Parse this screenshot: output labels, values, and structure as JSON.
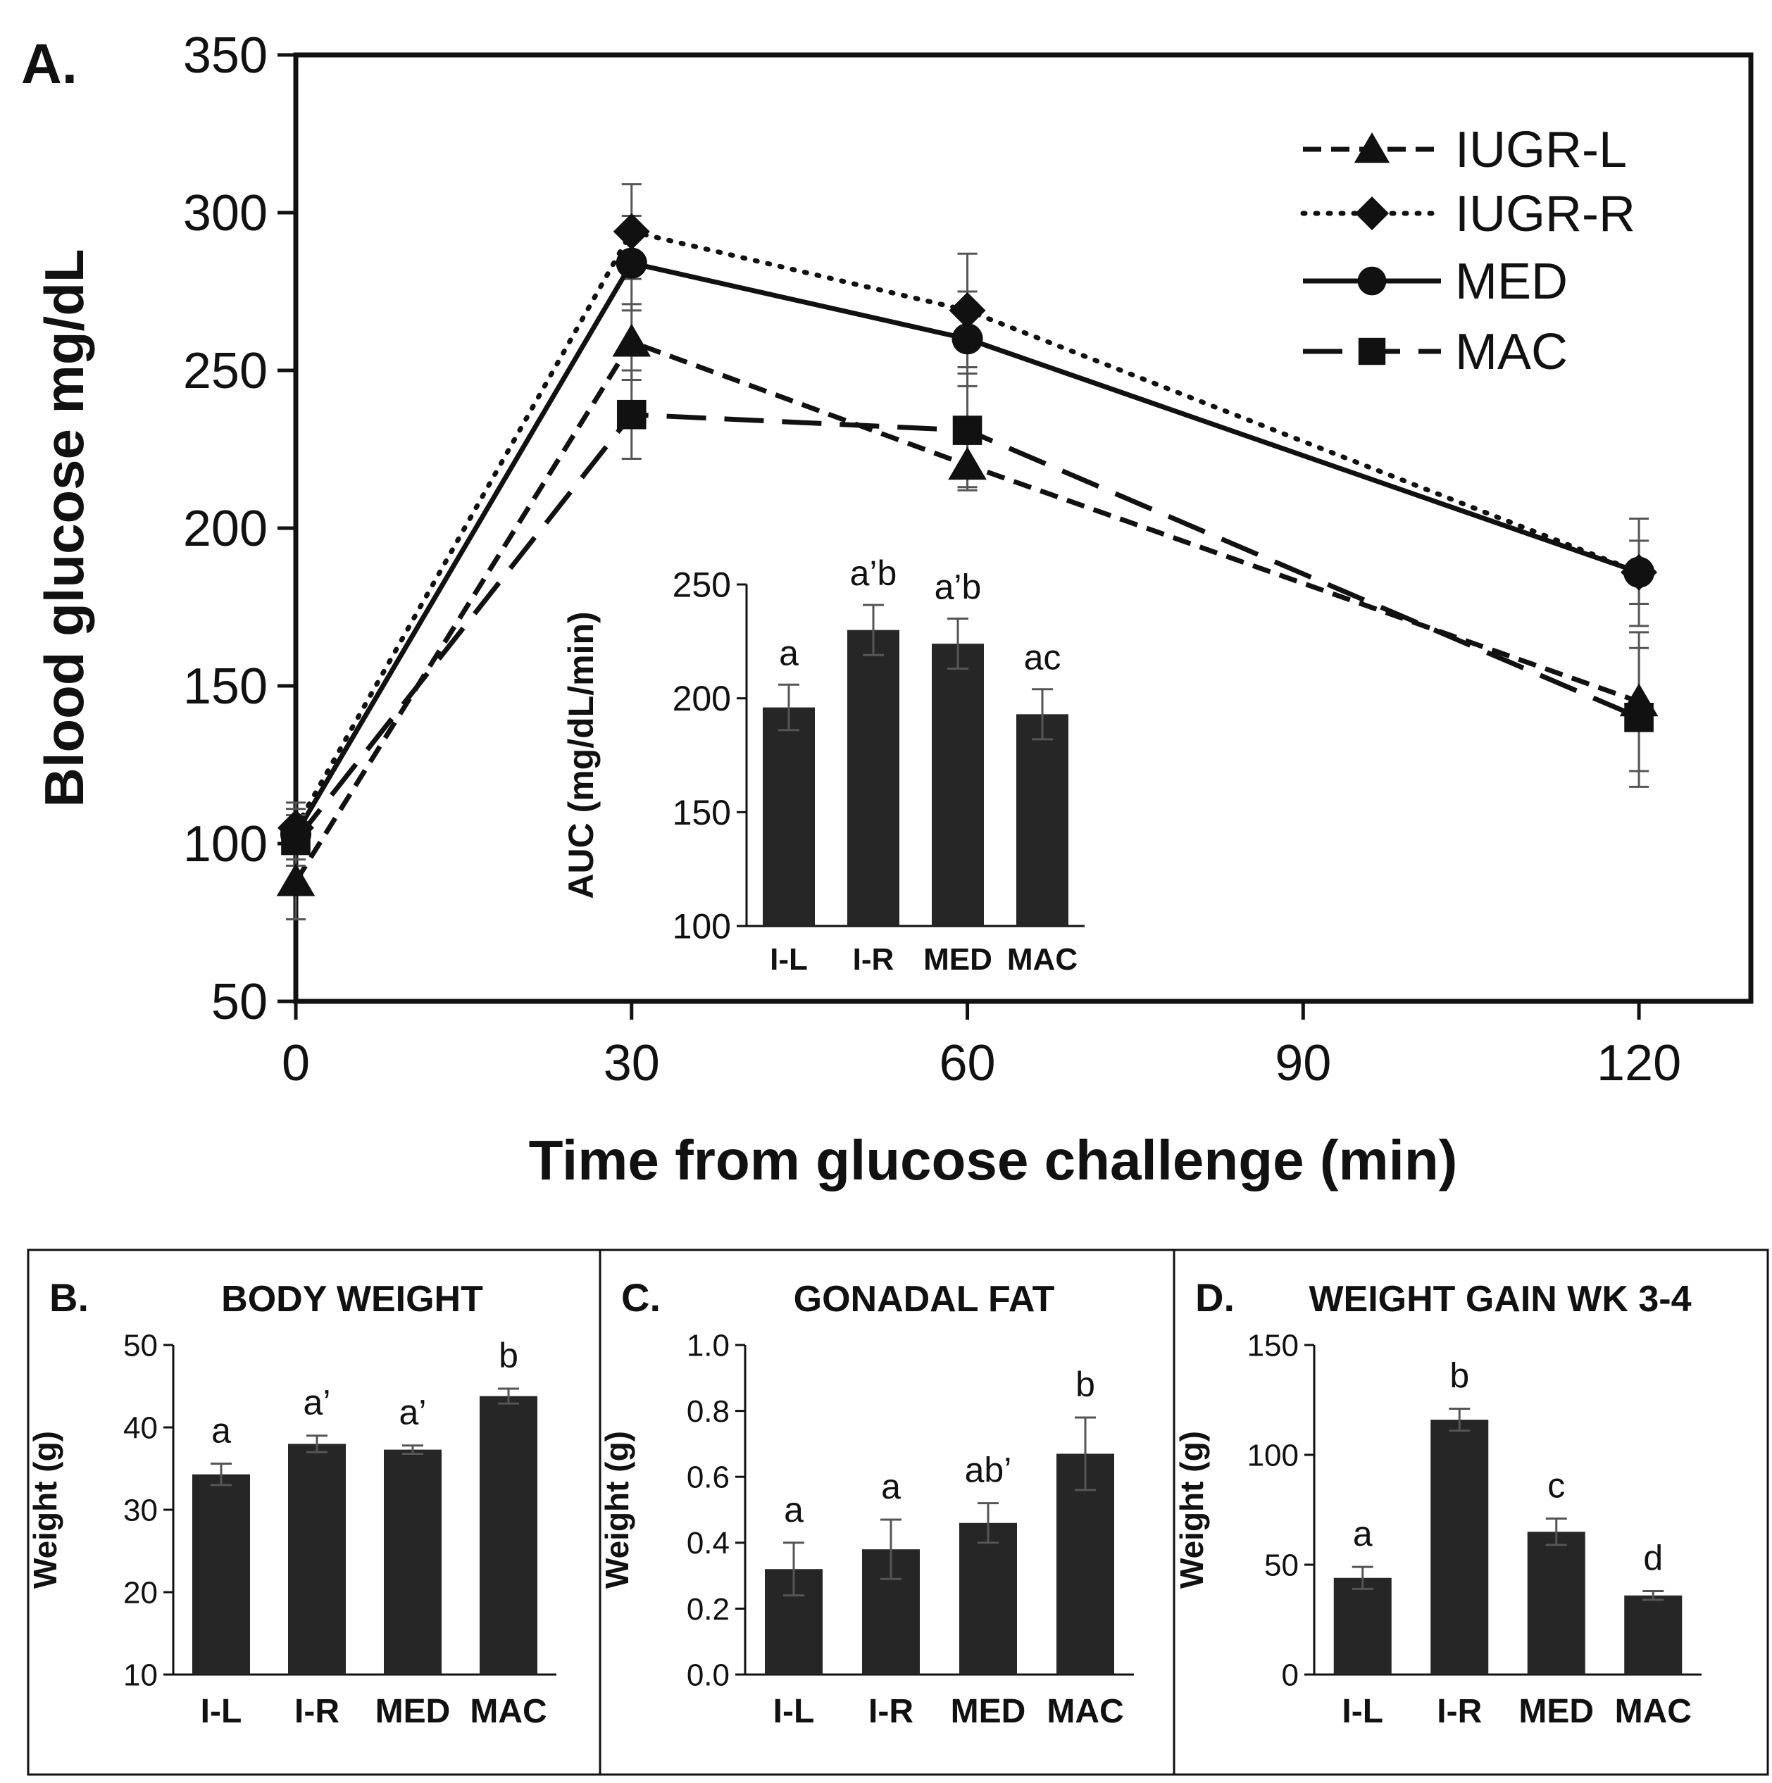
{
  "colors": {
    "ink": "#111111",
    "bar": "#262626",
    "background": "#ffffff",
    "errorbar": "#555555"
  },
  "chart_data": [
    {
      "id": "A",
      "type": "line",
      "panel_label": "A.",
      "xlabel": "Time from glucose challenge (min)",
      "ylabel": "Blood glucose mg/dL",
      "x_ticks": [
        "0",
        "30",
        "60",
        "90",
        "120"
      ],
      "y_ticks": [
        "50",
        "100",
        "150",
        "200",
        "250",
        "300",
        "350"
      ],
      "xlim": [
        0,
        130
      ],
      "ylim": [
        50,
        350
      ],
      "x": [
        0,
        30,
        60,
        120
      ],
      "series": [
        {
          "name": "IUGR-L",
          "marker": "triangle",
          "dash": "short-dash",
          "values": [
            88,
            259,
            220,
            145
          ],
          "errors": [
            12,
            12,
            8,
            22
          ]
        },
        {
          "name": "IUGR-R",
          "marker": "diamond",
          "dash": "dotted",
          "values": [
            105,
            294,
            269,
            186
          ],
          "errors": [
            8,
            15,
            18,
            17
          ]
        },
        {
          "name": "MED",
          "marker": "circle",
          "dash": "solid",
          "values": [
            103,
            284,
            260,
            186
          ],
          "errors": [
            8,
            15,
            15,
            10
          ]
        },
        {
          "name": "MAC",
          "marker": "square",
          "dash": "long-dash",
          "values": [
            101,
            236,
            231,
            140
          ],
          "errors": [
            8,
            14,
            18,
            22
          ]
        }
      ],
      "inset": {
        "type": "bar",
        "ylabel": "AUC (mg/dL/min)",
        "categories": [
          "I-L",
          "I-R",
          "MED",
          "MAC"
        ],
        "values": [
          196,
          230,
          224,
          193
        ],
        "errors": [
          10,
          11,
          11,
          11
        ],
        "annotations": [
          "a",
          "a’b",
          "a’b",
          "ac"
        ],
        "ylim": [
          100,
          250
        ],
        "y_ticks": [
          "100",
          "150",
          "200",
          "250"
        ]
      }
    },
    {
      "id": "B",
      "type": "bar",
      "panel_label": "B.",
      "title": "BODY WEIGHT",
      "ylabel": "Weight (g)",
      "categories": [
        "I-L",
        "I-R",
        "MED",
        "MAC"
      ],
      "values": [
        34.3,
        38.0,
        37.3,
        43.8
      ],
      "errors": [
        1.3,
        1.0,
        0.5,
        0.9
      ],
      "annotations": [
        "a",
        "a’",
        "a’",
        "b"
      ],
      "ylim": [
        10,
        50
      ],
      "y_ticks": [
        "10",
        "20",
        "30",
        "40",
        "50"
      ]
    },
    {
      "id": "C",
      "type": "bar",
      "panel_label": "C.",
      "title": "GONADAL FAT",
      "ylabel": "Weight (g)",
      "categories": [
        "I-L",
        "I-R",
        "MED",
        "MAC"
      ],
      "values": [
        0.32,
        0.38,
        0.46,
        0.67
      ],
      "errors": [
        0.08,
        0.09,
        0.06,
        0.11
      ],
      "annotations": [
        "a",
        "a",
        "ab’",
        "b"
      ],
      "ylim": [
        0,
        1.0
      ],
      "y_ticks": [
        "0.0",
        "0.2",
        "0.4",
        "0.6",
        "0.8",
        "1.0"
      ]
    },
    {
      "id": "D",
      "type": "bar",
      "panel_label": "D.",
      "title": "WEIGHT GAIN WK 3-4",
      "ylabel": "Weight (g)",
      "categories": [
        "I-L",
        "I-R",
        "MED",
        "MAC"
      ],
      "values": [
        44,
        116,
        65,
        36
      ],
      "errors": [
        5,
        5,
        6,
        2
      ],
      "annotations": [
        "a",
        "b",
        "c",
        "d"
      ],
      "ylim": [
        0,
        150
      ],
      "y_ticks": [
        "0",
        "50",
        "100",
        "150"
      ]
    }
  ]
}
